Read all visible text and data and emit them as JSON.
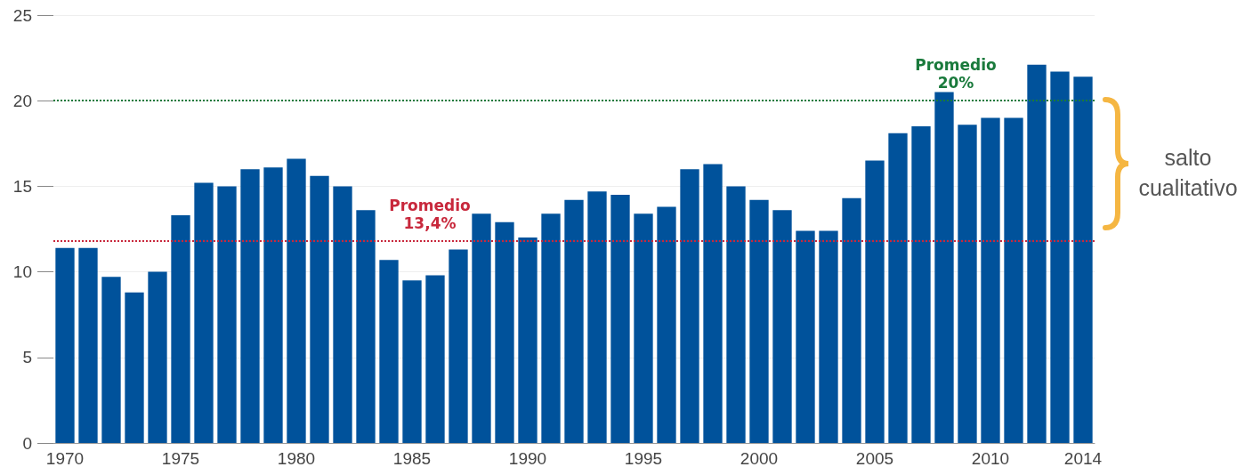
{
  "chart_data": {
    "type": "bar",
    "categories": [
      "1970",
      null,
      null,
      null,
      null,
      "1975",
      null,
      null,
      null,
      null,
      "1980",
      null,
      null,
      null,
      null,
      "1985",
      null,
      null,
      null,
      null,
      "1990",
      null,
      null,
      null,
      null,
      "1995",
      null,
      null,
      null,
      null,
      "2000",
      null,
      null,
      null,
      null,
      "2005",
      null,
      null,
      null,
      null,
      "2010",
      null,
      null,
      null,
      "2014"
    ],
    "values": [
      11.4,
      11.4,
      9.7,
      8.8,
      10.0,
      13.3,
      15.2,
      15.0,
      16.0,
      16.1,
      16.6,
      15.6,
      15.0,
      13.6,
      10.7,
      9.5,
      9.8,
      11.3,
      13.4,
      12.9,
      12.0,
      13.4,
      14.2,
      14.7,
      14.5,
      13.4,
      13.8,
      16.0,
      16.3,
      15.0,
      14.2,
      13.6,
      12.4,
      12.4,
      14.3,
      16.5,
      18.1,
      18.5,
      20.5,
      18.6,
      19.0,
      19.0,
      22.1,
      21.7,
      21.4
    ],
    "color": "#00529b",
    "ylim": [
      0,
      25
    ],
    "yticks": [
      0,
      5,
      10,
      15,
      20,
      25
    ],
    "grid": "y",
    "ref_lines": [
      {
        "axis": "y",
        "value": 11.8,
        "label": "Promedio\n13,4%",
        "color": "#c8283c",
        "line_style": "dotted"
      },
      {
        "axis": "y",
        "value": 20,
        "label": "Promedio\n20%",
        "color": "#1a7a3c",
        "line_style": "dotted"
      }
    ],
    "annotations": [
      "salto cualitativo"
    ]
  }
}
